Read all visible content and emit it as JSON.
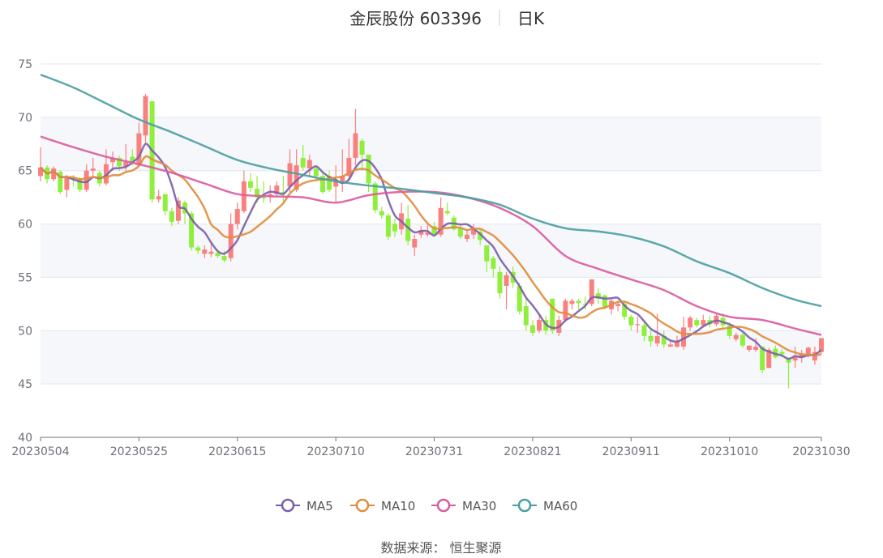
{
  "title": {
    "name": "金辰股份 603396",
    "period": "日K"
  },
  "source": "数据来源：  恒生聚源",
  "chart_data": {
    "type": "candlestick",
    "ylim": [
      40,
      75
    ],
    "yticks": [
      40,
      45,
      50,
      55,
      60,
      65,
      70,
      75
    ],
    "grid": true,
    "legend_position": "bottom",
    "x_tick_labels": [
      {
        "index": 0,
        "label": "20230504"
      },
      {
        "index": 15,
        "label": "20230525"
      },
      {
        "index": 30,
        "label": "20230615"
      },
      {
        "index": 45,
        "label": "20230710"
      },
      {
        "index": 60,
        "label": "20230731"
      },
      {
        "index": 75,
        "label": "20230821"
      },
      {
        "index": 90,
        "label": "20230911"
      },
      {
        "index": 105,
        "label": "20231010"
      },
      {
        "index": 119,
        "label": "20231030"
      }
    ],
    "colors": {
      "up": "#fa8080",
      "down": "#8fef3c",
      "MA5": "#7b5ea8",
      "MA10": "#e08c3c",
      "MA30": "#d95ba0",
      "MA60": "#4a9e9e"
    },
    "ohlc_fields": [
      "open",
      "close",
      "low",
      "high"
    ],
    "candles": [
      [
        64.5,
        65.3,
        64,
        67.2
      ],
      [
        65.3,
        64.2,
        63.8,
        65.5
      ],
      [
        64.2,
        65.2,
        64,
        65.4
      ],
      [
        64.9,
        63.0,
        62.8,
        65
      ],
      [
        63.2,
        64.3,
        62.5,
        64.6
      ],
      [
        64.3,
        64.2,
        63.5,
        64.6
      ],
      [
        64.2,
        63.2,
        63,
        64.4
      ],
      [
        63.2,
        65.0,
        63,
        65.6
      ],
      [
        65.0,
        65.2,
        64.5,
        66.2
      ],
      [
        64.8,
        63.8,
        63.5,
        65
      ],
      [
        63.8,
        65.6,
        63.6,
        67
      ],
      [
        65.8,
        66.2,
        65,
        66.8
      ],
      [
        66.2,
        65.4,
        65,
        66.4
      ],
      [
        65.4,
        65.8,
        65,
        67.5
      ],
      [
        66.3,
        65.8,
        65.5,
        67
      ],
      [
        65.5,
        68.5,
        65.5,
        69.5
      ],
      [
        68.3,
        72,
        67.5,
        72.2
      ],
      [
        71.5,
        62.3,
        62,
        71.5
      ],
      [
        62.3,
        62.6,
        62,
        63.2
      ],
      [
        62.8,
        61.2,
        60.8,
        62.8
      ],
      [
        61.2,
        60.2,
        59.8,
        61.5
      ],
      [
        60.3,
        62.2,
        60,
        62.5
      ],
      [
        62,
        61,
        60,
        62.2
      ],
      [
        61,
        57.8,
        57.5,
        61.2
      ],
      [
        57.8,
        57.5,
        57.2,
        58
      ],
      [
        57.2,
        57.6,
        56.8,
        58
      ],
      [
        57.2,
        57.4,
        56.9,
        58.2
      ],
      [
        57.3,
        57.0,
        56.8,
        57.6
      ],
      [
        57,
        56.6,
        56.4,
        57.5
      ],
      [
        56.8,
        60,
        56.5,
        61
      ],
      [
        60,
        61.4,
        59.5,
        62
      ],
      [
        61.2,
        64,
        61,
        65
      ],
      [
        64,
        63.4,
        63,
        64.8
      ],
      [
        63.3,
        62.5,
        62,
        64.5
      ],
      [
        62.5,
        62.4,
        62,
        64
      ],
      [
        62.6,
        62.8,
        62,
        63.6
      ],
      [
        62.8,
        63.6,
        62.5,
        64
      ],
      [
        63,
        62.8,
        62,
        64.5
      ],
      [
        63.5,
        65.7,
        63,
        67
      ],
      [
        63.2,
        65.5,
        63,
        67
      ],
      [
        66.2,
        65.3,
        65,
        67.4
      ],
      [
        65.2,
        66,
        64.5,
        66.5
      ],
      [
        65.2,
        64.5,
        64,
        65.5
      ],
      [
        64.5,
        63,
        62.8,
        64.8
      ],
      [
        64.5,
        63.2,
        63,
        65
      ],
      [
        63.5,
        64,
        62,
        65.5
      ],
      [
        64,
        64.5,
        63,
        67
      ],
      [
        64.5,
        66.2,
        64,
        68
      ],
      [
        66.2,
        68.5,
        65.5,
        70.8
      ],
      [
        67.8,
        66.5,
        65,
        68
      ],
      [
        66.5,
        63.8,
        63,
        66.5
      ],
      [
        63.8,
        61.3,
        61,
        64
      ],
      [
        61.2,
        60.8,
        60.5,
        61.6
      ],
      [
        60.8,
        58.8,
        58.5,
        61
      ],
      [
        60,
        59.3,
        58.8,
        60.5
      ],
      [
        59.5,
        61,
        59,
        62
      ],
      [
        60.5,
        58.4,
        58,
        61.8
      ],
      [
        57.8,
        58.6,
        57,
        59
      ],
      [
        59,
        59.4,
        58.7,
        59.8
      ],
      [
        59,
        59.2,
        58.8,
        60
      ],
      [
        59.8,
        59,
        58.8,
        60.2
      ],
      [
        59,
        61.5,
        58.8,
        62.5
      ],
      [
        61.2,
        61,
        60.8,
        62
      ],
      [
        60.6,
        59.5,
        59.4,
        60.8
      ],
      [
        59.6,
        58.8,
        58.6,
        60
      ],
      [
        58.6,
        59,
        58.3,
        59.4
      ],
      [
        59,
        59.5,
        58.6,
        60
      ],
      [
        59.3,
        58.5,
        58,
        59.5
      ],
      [
        58,
        56.5,
        55.5,
        58
      ],
      [
        56.8,
        55.8,
        55,
        57
      ],
      [
        55.5,
        53.5,
        53,
        56
      ],
      [
        54.2,
        55.2,
        52,
        55.5
      ],
      [
        55.5,
        54.5,
        54,
        56
      ],
      [
        54.2,
        51.8,
        51.5,
        54.5
      ],
      [
        52.3,
        50.5,
        50,
        53
      ],
      [
        50.5,
        49.8,
        49.5,
        51
      ],
      [
        50,
        51,
        49.8,
        51.5
      ],
      [
        51,
        50,
        49.6,
        51.4
      ],
      [
        53,
        50,
        49.7,
        53
      ],
      [
        49.8,
        51,
        49.5,
        51.4
      ],
      [
        51,
        52.8,
        50.8,
        53
      ],
      [
        52.5,
        52.8,
        52,
        53
      ],
      [
        52.8,
        52.6,
        52,
        53
      ],
      [
        52.5,
        52.4,
        52,
        53.2
      ],
      [
        52.5,
        54.8,
        52.3,
        54.8
      ],
      [
        53.5,
        53,
        52.5,
        54
      ],
      [
        53.3,
        52.2,
        52,
        53.4
      ],
      [
        52,
        52.8,
        51.5,
        53
      ],
      [
        52.3,
        52.5,
        51.8,
        52.8
      ],
      [
        52.5,
        51.3,
        51,
        52.8
      ],
      [
        51.3,
        50.5,
        50,
        51.5
      ],
      [
        50.5,
        50.6,
        49.8,
        51.3
      ],
      [
        50.5,
        49.5,
        49,
        50.8
      ],
      [
        49.5,
        49,
        48.5,
        50
      ],
      [
        48.8,
        49.5,
        48.5,
        51.6
      ],
      [
        49.5,
        48.7,
        48.4,
        50
      ],
      [
        48.5,
        48.7,
        48.5,
        49
      ],
      [
        48.5,
        49,
        48.4,
        49.5
      ],
      [
        48.5,
        50.3,
        48.2,
        51.3
      ],
      [
        50.3,
        51.2,
        50,
        51.4
      ],
      [
        51,
        50.5,
        50.3,
        51.2
      ],
      [
        50.5,
        51,
        50.3,
        51.5
      ],
      [
        51,
        50.6,
        50.3,
        51.4
      ],
      [
        50.6,
        51.4,
        50.4,
        51.7
      ],
      [
        51.2,
        50.5,
        50.3,
        51.6
      ],
      [
        50.5,
        49.5,
        49.2,
        50.8
      ],
      [
        49.2,
        49.6,
        49.0,
        49.8
      ],
      [
        49.6,
        48.6,
        48.4,
        49.8
      ],
      [
        48.2,
        48.6,
        48,
        48.6
      ],
      [
        48.2,
        48.5,
        48,
        49.3
      ],
      [
        48.5,
        46.3,
        46,
        48.5
      ],
      [
        46.5,
        48.2,
        46.5,
        48.4
      ],
      [
        48.3,
        47.5,
        47.4,
        48.6
      ],
      [
        48,
        47.8,
        47.5,
        48.3
      ],
      [
        47.4,
        47.0,
        44.6,
        47.4
      ],
      [
        47.2,
        47.5,
        46.5,
        48.5
      ],
      [
        47.5,
        47.8,
        47,
        48.2
      ],
      [
        47.8,
        48.4,
        47.5,
        48.5
      ],
      [
        47.2,
        48,
        46.8,
        48.5
      ],
      [
        48,
        49.3,
        47.8,
        49.3
      ]
    ],
    "series": [
      {
        "name": "MA5",
        "period": 5
      },
      {
        "name": "MA10",
        "period": 10
      },
      {
        "name": "MA30",
        "sample_index": [
          0,
          5,
          10,
          15,
          20,
          25,
          30,
          35,
          40,
          45,
          50,
          55,
          60,
          65,
          70,
          75,
          80,
          85,
          90,
          95,
          100,
          105,
          110,
          115,
          119
        ],
        "values": [
          68.2,
          67.2,
          66.3,
          65.6,
          64.8,
          63.8,
          62.8,
          62.6,
          62.5,
          62.0,
          62.7,
          63.0,
          63.0,
          62.5,
          61.5,
          59.8,
          57.0,
          55.8,
          54.8,
          53.8,
          52.3,
          51.3,
          51.0,
          50.2,
          49.6
        ]
      },
      {
        "name": "MA60",
        "sample_index": [
          0,
          5,
          10,
          15,
          20,
          25,
          30,
          35,
          40,
          45,
          50,
          55,
          60,
          65,
          70,
          75,
          80,
          85,
          90,
          95,
          100,
          105,
          110,
          115,
          119
        ],
        "values": [
          74.0,
          72.8,
          71.3,
          69.8,
          68.6,
          67.3,
          66.0,
          65.2,
          64.6,
          64.0,
          63.6,
          63.3,
          62.9,
          62.5,
          61.8,
          60.5,
          59.6,
          59.3,
          58.8,
          57.9,
          56.5,
          55.4,
          54.0,
          52.9,
          52.3
        ]
      }
    ]
  }
}
